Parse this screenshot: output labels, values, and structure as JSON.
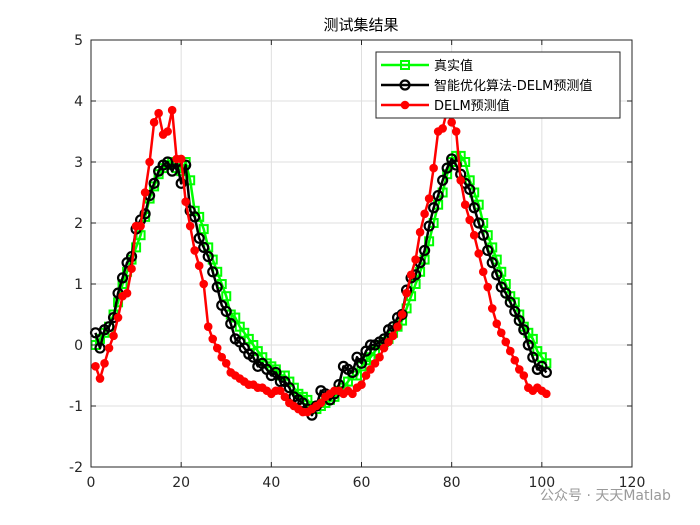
{
  "chart_data": {
    "type": "line",
    "title": "测试集结果",
    "xlabel": "",
    "ylabel": "",
    "xlim": [
      0,
      120
    ],
    "ylim": [
      -2,
      5
    ],
    "xticks": [
      0,
      20,
      40,
      60,
      80,
      100,
      120
    ],
    "yticks": [
      -2,
      -1,
      0,
      1,
      2,
      3,
      4,
      5
    ],
    "grid": true,
    "legend_position": "top-right",
    "x_start": 1,
    "x_step": 1,
    "series": [
      {
        "name": "真实值",
        "color": "#00ff00",
        "marker": "square",
        "values": [
          0.0,
          0.1,
          0.2,
          0.3,
          0.5,
          0.7,
          1.0,
          1.2,
          1.4,
          1.6,
          1.8,
          2.1,
          2.4,
          2.6,
          2.8,
          2.9,
          2.95,
          3.0,
          2.9,
          2.85,
          3.0,
          2.7,
          2.2,
          2.1,
          1.9,
          1.6,
          1.4,
          1.2,
          1.0,
          0.8,
          0.5,
          0.45,
          0.3,
          0.2,
          0.1,
          0.0,
          -0.1,
          -0.2,
          -0.3,
          -0.35,
          -0.4,
          -0.5,
          -0.5,
          -0.6,
          -0.7,
          -0.8,
          -0.85,
          -0.9,
          -1.0,
          -1.05,
          -1.0,
          -0.95,
          -0.9,
          -0.85,
          -0.75,
          -0.7,
          -0.6,
          -0.5,
          -0.5,
          -0.35,
          -0.25,
          -0.2,
          -0.1,
          0.0,
          0.05,
          0.1,
          0.2,
          0.3,
          0.4,
          0.6,
          0.8,
          1.0,
          1.2,
          1.4,
          1.7,
          2.0,
          2.3,
          2.5,
          2.8,
          3.0,
          3.1,
          3.1,
          3.0,
          2.7,
          2.5,
          2.3,
          2.0,
          1.8,
          1.6,
          1.4,
          1.2,
          1.0,
          0.8,
          0.7,
          0.5,
          0.3,
          0.2,
          0.1,
          -0.1,
          -0.2,
          -0.3
        ]
      },
      {
        "name": "智能优化算法-DELM预测值",
        "color": "#000000",
        "marker": "circle",
        "values": [
          0.2,
          -0.05,
          0.25,
          0.3,
          0.45,
          0.85,
          1.1,
          1.35,
          1.45,
          1.9,
          2.05,
          2.15,
          2.45,
          2.65,
          2.85,
          2.95,
          3.0,
          2.85,
          3.0,
          2.65,
          2.95,
          2.2,
          2.1,
          1.75,
          1.6,
          1.45,
          1.2,
          0.95,
          0.65,
          0.55,
          0.35,
          0.1,
          0.05,
          -0.05,
          -0.15,
          -0.2,
          -0.35,
          -0.3,
          -0.4,
          -0.5,
          -0.45,
          -0.6,
          -0.6,
          -0.7,
          -0.85,
          -0.9,
          -0.95,
          -1.05,
          -1.15,
          -1.0,
          -0.75,
          -0.8,
          -0.9,
          -0.8,
          -0.65,
          -0.35,
          -0.4,
          -0.45,
          -0.2,
          -0.3,
          -0.1,
          0.0,
          0.0,
          0.05,
          0.1,
          0.25,
          0.3,
          0.45,
          0.5,
          0.9,
          1.1,
          1.15,
          1.35,
          1.55,
          1.95,
          2.25,
          2.45,
          2.7,
          2.9,
          3.05,
          2.95,
          2.8,
          2.65,
          2.55,
          2.25,
          2.0,
          1.8,
          1.55,
          1.35,
          1.15,
          0.95,
          0.85,
          0.7,
          0.55,
          0.4,
          0.25,
          0.0,
          -0.2,
          -0.4,
          -0.35,
          -0.45
        ]
      },
      {
        "name": "DELM预测值",
        "color": "#ff0000",
        "marker": "dot",
        "values": [
          -0.35,
          -0.55,
          -0.3,
          -0.05,
          0.15,
          0.45,
          0.8,
          0.85,
          1.25,
          1.95,
          1.95,
          2.5,
          3.0,
          3.65,
          3.8,
          3.45,
          3.5,
          3.85,
          3.05,
          3.05,
          2.35,
          1.95,
          1.55,
          1.3,
          1.0,
          0.3,
          0.1,
          -0.05,
          -0.2,
          -0.3,
          -0.45,
          -0.5,
          -0.55,
          -0.6,
          -0.65,
          -0.65,
          -0.7,
          -0.7,
          -0.75,
          -0.8,
          -0.75,
          -0.75,
          -0.85,
          -0.95,
          -1.0,
          -1.05,
          -1.1,
          -1.1,
          -1.05,
          -1.0,
          -0.95,
          -0.85,
          -0.8,
          -0.75,
          -0.75,
          -0.8,
          -0.75,
          -0.8,
          -0.7,
          -0.65,
          -0.5,
          -0.4,
          -0.3,
          -0.2,
          -0.05,
          0.05,
          0.15,
          0.3,
          0.5,
          0.85,
          1.15,
          1.4,
          1.85,
          2.15,
          2.4,
          2.9,
          3.5,
          3.55,
          3.85,
          3.65,
          3.5,
          2.7,
          2.3,
          2.05,
          1.8,
          1.5,
          1.2,
          0.95,
          0.6,
          0.35,
          0.2,
          0.05,
          -0.1,
          -0.25,
          -0.4,
          -0.5,
          -0.7,
          -0.75,
          -0.7,
          -0.75,
          -0.8
        ]
      }
    ]
  },
  "watermark": "公众号 · 天天Matlab"
}
